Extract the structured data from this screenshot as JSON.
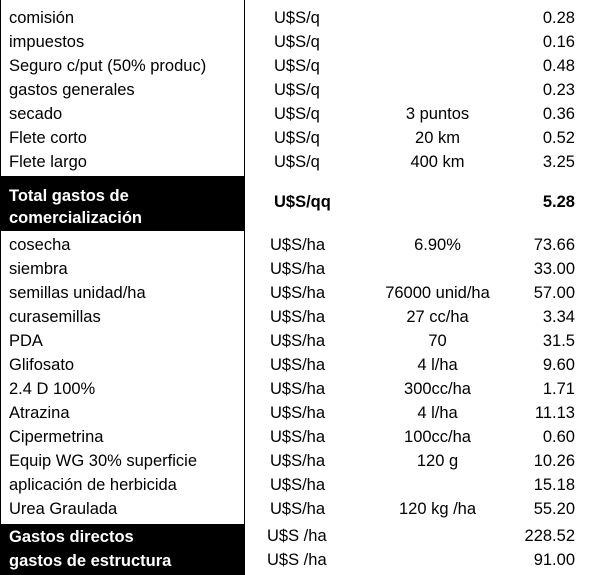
{
  "commercial_rows": [
    {
      "concept": "comisión",
      "unit": "U$S/q",
      "detail": "",
      "value": "0.28"
    },
    {
      "concept": "impuestos",
      "unit": "U$S/q",
      "detail": "",
      "value": "0.16"
    },
    {
      "concept": "Seguro c/put (50% produc)",
      "unit": "U$S/q",
      "detail": "",
      "value": "0.48"
    },
    {
      "concept": "gastos generales",
      "unit": "U$S/q",
      "detail": "",
      "value": "0.23"
    },
    {
      "concept": "secado",
      "unit": "U$S/q",
      "detail": "3 puntos",
      "value": "0.36"
    },
    {
      "concept": "Flete corto",
      "unit": "U$S/q",
      "detail": "20 km",
      "value": "0.52"
    },
    {
      "concept": "Flete largo",
      "unit": "U$S/q",
      "detail": "400 km",
      "value": "3.25"
    }
  ],
  "total_commercial": {
    "label_line1": "Total gastos de",
    "label_line2": "comercialización",
    "unit": "U$S/qq",
    "value": "5.28"
  },
  "direct_rows": [
    {
      "concept": "cosecha",
      "unit": "U$S/ha",
      "detail": "6.90%",
      "value": "73.66"
    },
    {
      "concept": "siembra",
      "unit": "U$S/ha",
      "detail": "",
      "value": "33.00"
    },
    {
      "concept": "semillas unidad/ha",
      "unit": "U$S/ha",
      "detail": "76000 unid/ha",
      "value": "57.00"
    },
    {
      "concept": "curasemillas",
      "unit": "U$S/ha",
      "detail": "27 cc/ha",
      "value": "3.34"
    },
    {
      "concept": "PDA",
      "unit": "U$S/ha",
      "detail": "70",
      "value": "31.5"
    },
    {
      "concept": "Glifosato",
      "unit": "U$S/ha",
      "detail": "4 l/ha",
      "value": "9.60"
    },
    {
      "concept": "2.4 D 100%",
      "unit": "U$S/ha",
      "detail": "300cc/ha",
      "value": "1.71"
    },
    {
      "concept": "Atrazina",
      "unit": "U$S/ha",
      "detail": "4 l/ha",
      "value": "11.13"
    },
    {
      "concept": "Cipermetrina",
      "unit": "U$S/ha",
      "detail": "100cc/ha",
      "value": "0.60"
    },
    {
      "concept": "Equip WG 30% superficie",
      "unit": "U$S/ha",
      "detail": "120 g",
      "value": "10.26"
    },
    {
      "concept": "aplicación de herbicida",
      "unit": "U$S/ha",
      "detail": "",
      "value": "15.18"
    },
    {
      "concept": "Urea Graulada",
      "unit": "U$S/ha",
      "detail": "120 kg /ha",
      "value": "55.20"
    }
  ],
  "summary_rows": [
    {
      "label": "Gastos directos",
      "unit": "U$S /ha",
      "value": "228.52"
    },
    {
      "label": "gastos de estructura",
      "unit": "U$S /ha",
      "value": "91.00"
    }
  ]
}
